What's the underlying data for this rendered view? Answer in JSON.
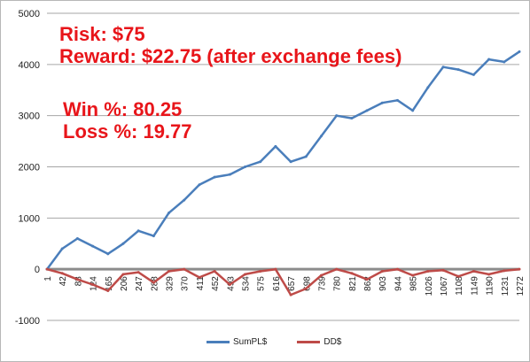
{
  "chart_data": {
    "type": "line",
    "ylim": [
      -1000,
      5000
    ],
    "yticks": [
      "5000",
      "4000",
      "3000",
      "2000",
      "1000",
      "0",
      "-1000"
    ],
    "grid": "horizontal",
    "legend_position": "bottom",
    "x": [
      1,
      42,
      83,
      124,
      165,
      206,
      247,
      288,
      329,
      370,
      411,
      452,
      493,
      534,
      575,
      616,
      657,
      698,
      739,
      780,
      821,
      862,
      903,
      944,
      985,
      1026,
      1067,
      1108,
      1149,
      1190,
      1231,
      1272
    ],
    "xtick_labels": [
      "1",
      "42",
      "83",
      "124",
      "165",
      "206",
      "247",
      "288",
      "329",
      "370",
      "411",
      "452",
      "493",
      "534",
      "575",
      "616",
      "657",
      "698",
      "739",
      "780",
      "821",
      "862",
      "903",
      "944",
      "985",
      "1026",
      "1067",
      "1108",
      "1149",
      "1190",
      "1231",
      "1272"
    ],
    "series": [
      {
        "name": "SumPL$",
        "color": "#4a7ebb",
        "values": [
          0,
          400,
          600,
          450,
          300,
          500,
          750,
          650,
          1100,
          1350,
          1650,
          1800,
          1850,
          2000,
          2100,
          2400,
          2100,
          2200,
          2600,
          3000,
          2950,
          3100,
          3250,
          3300,
          3100,
          3550,
          3950,
          3900,
          3800,
          4100,
          4050,
          4250
        ]
      },
      {
        "name": "DD$",
        "color": "#be4b48",
        "values": [
          0,
          -80,
          -200,
          -300,
          -420,
          -100,
          -60,
          -260,
          -40,
          0,
          -160,
          -40,
          -300,
          -100,
          -40,
          0,
          -500,
          -380,
          -120,
          0,
          -80,
          -200,
          -40,
          0,
          -120,
          -40,
          -20,
          -140,
          -40,
          -100,
          -30,
          0
        ]
      }
    ]
  },
  "annotations": {
    "risk": "Risk:  $75",
    "reward": "Reward:  $22.75 (after exchange fees)",
    "win": "Win %: 80.25",
    "loss": "Loss %: 19.77"
  },
  "legend": {
    "sumpl": "SumPL$",
    "dd": "DD$"
  }
}
